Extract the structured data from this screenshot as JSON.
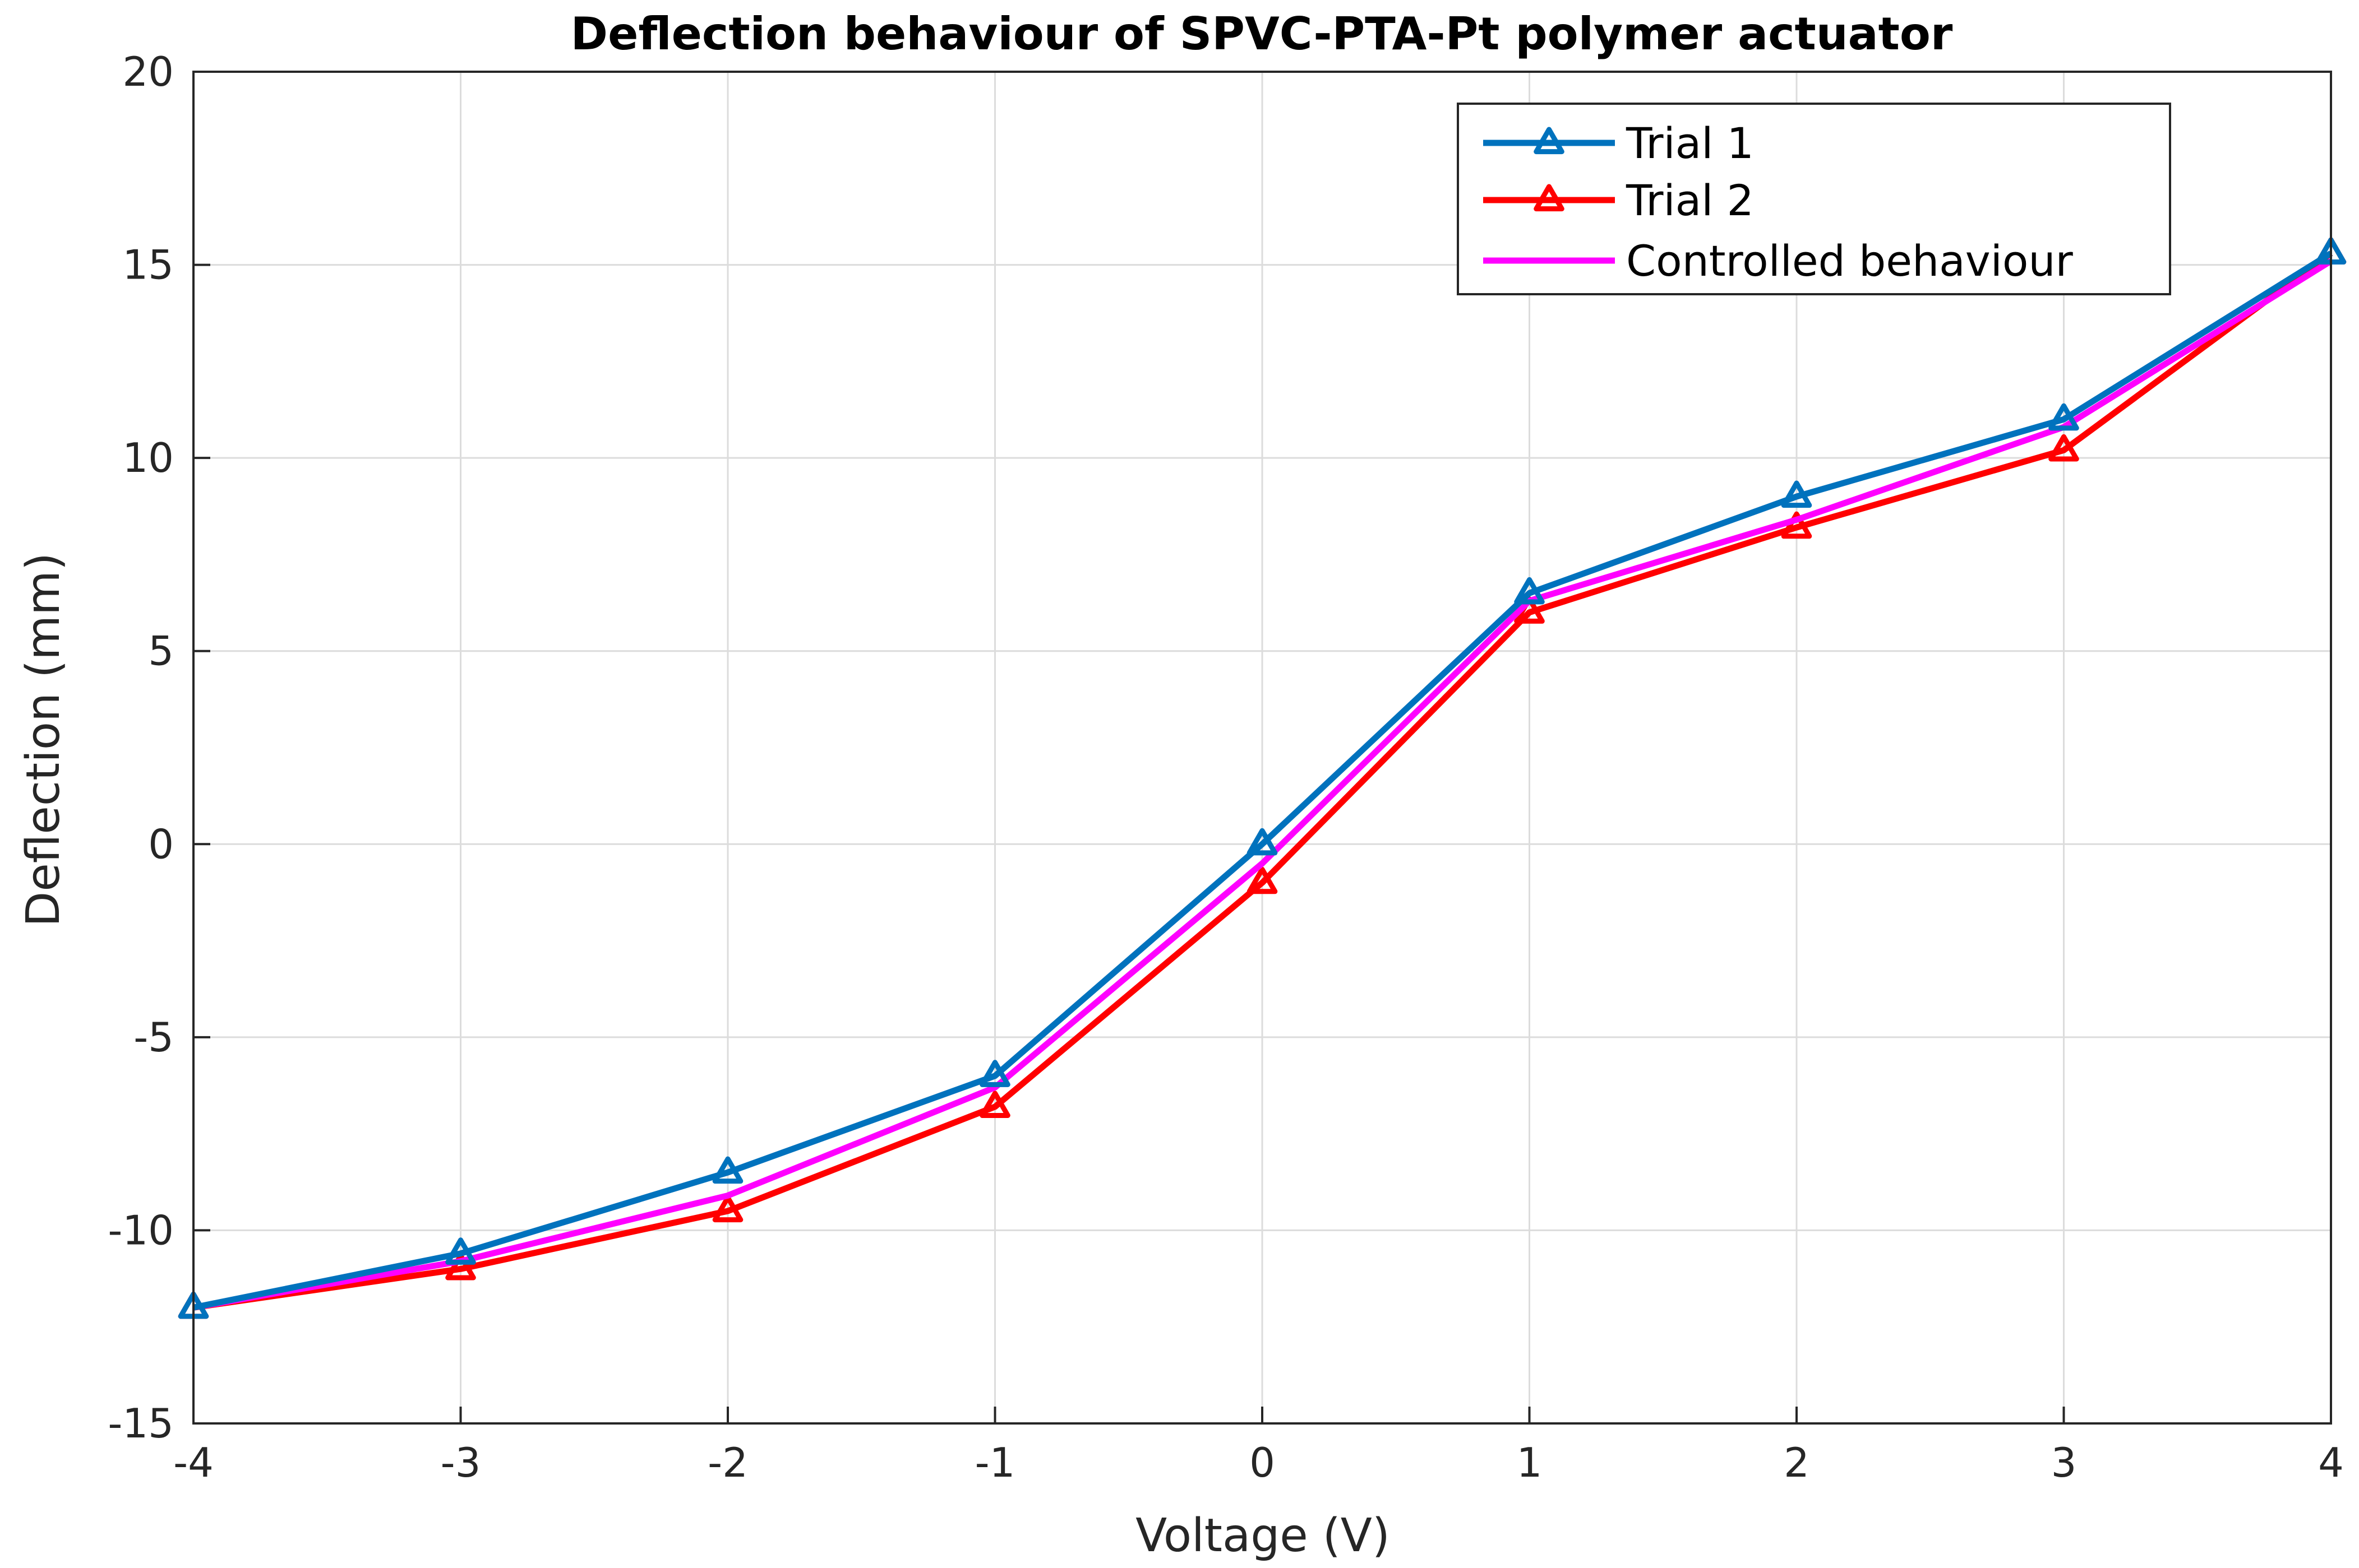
{
  "chart_data": {
    "type": "line",
    "title": "Deflection behaviour of SPVC-PTA-Pt polymer actuator",
    "xlabel": "Voltage (V)",
    "ylabel": "Deflection (mm)",
    "xlim": [
      -4,
      4
    ],
    "ylim": [
      -15,
      20
    ],
    "xticks": [
      "-4",
      "-3",
      "-2",
      "-1",
      "0",
      "1",
      "2",
      "3",
      "4"
    ],
    "yticks": [
      "-15",
      "-10",
      "-5",
      "0",
      "5",
      "10",
      "15",
      "20"
    ],
    "grid": true,
    "legend_position": "top-right",
    "x": [
      -4,
      -3,
      -2,
      -1,
      0,
      1,
      2,
      3,
      4
    ],
    "series": [
      {
        "name": "Trial 1",
        "color": "#0072BD",
        "marker": "triangle",
        "values": [
          -12,
          -10.6,
          -8.5,
          -6,
          0,
          6.5,
          9,
          11,
          15.3
        ]
      },
      {
        "name": "Trial 2",
        "color": "#FF0000",
        "marker": "triangle",
        "values": [
          -12,
          -11,
          -9.5,
          -6.8,
          -1,
          6,
          8.2,
          10.2,
          15.3
        ]
      },
      {
        "name": "Controlled behaviour",
        "color": "#FF00FF",
        "marker": "none",
        "values": [
          -12,
          -10.8,
          -9.1,
          -6.3,
          -0.5,
          6.3,
          8.4,
          10.8,
          15.1
        ]
      }
    ]
  }
}
